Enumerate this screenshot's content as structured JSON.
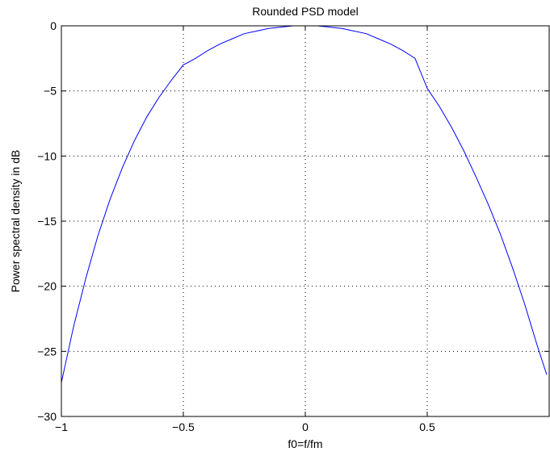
{
  "chart_data": {
    "type": "line",
    "title": "Rounded PSD model",
    "xlabel": "f0=f/fm",
    "ylabel": "Power spectral density in dB",
    "xlim": [
      -1,
      1
    ],
    "ylim": [
      -30,
      0
    ],
    "grid": true,
    "x_ticks": [
      -1,
      -0.5,
      0,
      0.5
    ],
    "x_tick_labels": [
      "−1",
      "−0.5",
      "0",
      "0.5"
    ],
    "y_ticks": [
      0,
      -5,
      -10,
      -15,
      -20,
      -25,
      -30
    ],
    "y_tick_labels": [
      "0",
      "−5",
      "−10",
      "−15",
      "−20",
      "−25",
      "−30"
    ],
    "line_color": "#0000ff",
    "series": [
      {
        "x": [
          -1.0,
          -0.95,
          -0.9,
          -0.85,
          -0.8,
          -0.75,
          -0.7,
          -0.65,
          -0.6,
          -0.55,
          -0.5,
          -0.45,
          -0.4,
          -0.35,
          -0.3,
          -0.25,
          -0.2,
          -0.15,
          -0.1,
          -0.05,
          0.0,
          0.05,
          0.1,
          0.15,
          0.2,
          0.25,
          0.3,
          0.35,
          0.4,
          0.45,
          0.5,
          0.55,
          0.6,
          0.65,
          0.7,
          0.75,
          0.8,
          0.85,
          0.9,
          0.95,
          0.99
        ],
        "y": [
          -27.4,
          -23.1,
          -19.4,
          -16.1,
          -13.3,
          -10.9,
          -8.8,
          -7.0,
          -5.5,
          -4.2,
          -3.0,
          -2.5,
          -1.9,
          -1.4,
          -1.0,
          -0.6,
          -0.4,
          -0.2,
          -0.1,
          0.0,
          0.0,
          0.0,
          -0.1,
          -0.2,
          -0.4,
          -0.6,
          -1.0,
          -1.4,
          -1.9,
          -2.5,
          -4.8,
          -6.2,
          -7.8,
          -9.6,
          -11.6,
          -13.7,
          -16.0,
          -18.6,
          -21.4,
          -24.5,
          -26.8
        ]
      }
    ]
  }
}
